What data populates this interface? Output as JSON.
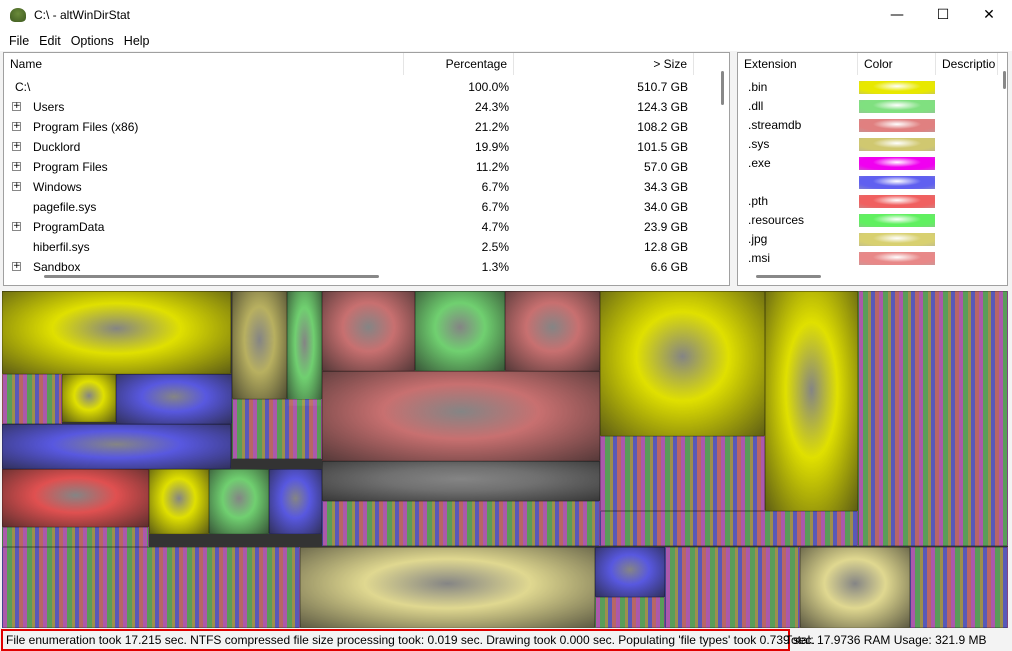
{
  "window": {
    "title": "C:\\ - altWinDirStat",
    "minimize": "—",
    "maximize": "☐",
    "close": "✕"
  },
  "menu": [
    "File",
    "Edit",
    "Options",
    "Help"
  ],
  "tree": {
    "columns": {
      "name": "Name",
      "percentage": "Percentage",
      "size": "> Size"
    },
    "rows": [
      {
        "name": "C:\\",
        "percentage": "100.0%",
        "size": "510.7 GB",
        "expandable": false
      },
      {
        "name": "Users",
        "percentage": "24.3%",
        "size": "124.3 GB",
        "expandable": true
      },
      {
        "name": "Program Files (x86)",
        "percentage": "21.2%",
        "size": "108.2 GB",
        "expandable": true
      },
      {
        "name": "Ducklord",
        "percentage": "19.9%",
        "size": "101.5 GB",
        "expandable": true
      },
      {
        "name": "Program Files",
        "percentage": "11.2%",
        "size": "57.0 GB",
        "expandable": true
      },
      {
        "name": "Windows",
        "percentage": "6.7%",
        "size": "34.3 GB",
        "expandable": true
      },
      {
        "name": "pagefile.sys",
        "percentage": "6.7%",
        "size": "34.0 GB",
        "expandable": false
      },
      {
        "name": "ProgramData",
        "percentage": "4.7%",
        "size": "23.9 GB",
        "expandable": true
      },
      {
        "name": "hiberfil.sys",
        "percentage": "2.5%",
        "size": "12.8 GB",
        "expandable": false
      },
      {
        "name": "Sandbox",
        "percentage": "1.3%",
        "size": "6.6 GB",
        "expandable": true
      }
    ]
  },
  "extensions": {
    "columns": {
      "extension": "Extension",
      "color": "Color",
      "description": "Descriptio"
    },
    "rows": [
      {
        "ext": ".bin",
        "color": "#e8e800"
      },
      {
        "ext": ".dll",
        "color": "#80e080"
      },
      {
        "ext": ".streamdb",
        "color": "#e08080"
      },
      {
        "ext": ".sys",
        "color": "#d0c870"
      },
      {
        "ext": ".exe",
        "color": "#f000f0"
      },
      {
        "ext": "",
        "color": "#6060f0"
      },
      {
        "ext": ".pth",
        "color": "#f06060"
      },
      {
        "ext": ".resources",
        "color": "#60f060"
      },
      {
        "ext": ".jpg",
        "color": "#d8d070"
      },
      {
        "ext": ".msi",
        "color": "#e88888"
      }
    ]
  },
  "status": {
    "message": "File enumeration took 17.215 sec. NTFS compressed file size processing took: 0.019 sec. Drawing took 0.000 sec. Populating 'file types' took 0.739 sec.",
    "right": "Total: 17.9736  RAM Usage: 321.9 MB"
  }
}
